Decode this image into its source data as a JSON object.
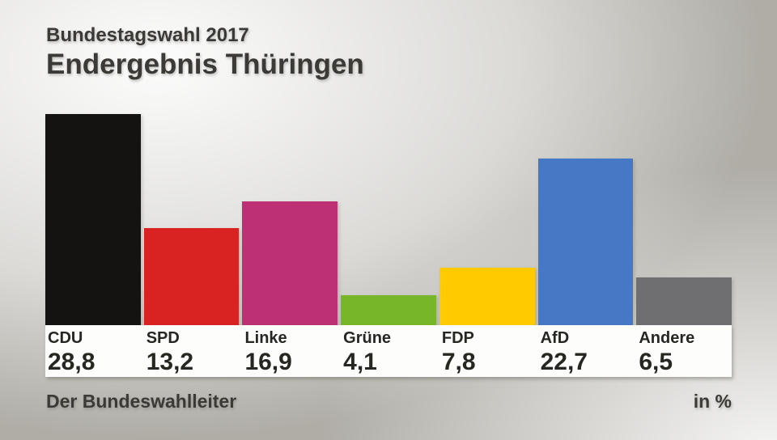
{
  "header": {
    "kicker": "Bundestagswahl 2017",
    "title": "Endergebnis Thüringen"
  },
  "footer": {
    "source": "Der Bundeswahlleiter",
    "unit_label": "in %"
  },
  "chart_data": {
    "type": "bar",
    "title": "Endergebnis Thüringen",
    "subtitle": "Bundestagswahl 2017",
    "categories": [
      "CDU",
      "SPD",
      "Linke",
      "Grüne",
      "FDP",
      "AfD",
      "Andere"
    ],
    "values": [
      28.8,
      13.2,
      16.9,
      4.1,
      7.8,
      22.7,
      6.5
    ],
    "display_values": [
      "28,8",
      "13,2",
      "16,9",
      "4,1",
      "7,8",
      "22,7",
      "6,5"
    ],
    "bar_colors": [
      "#151311",
      "#d92222",
      "#be3075",
      "#77b629",
      "#ffcb00",
      "#4579c5",
      "#6f6f71"
    ],
    "unit": "in %",
    "xlabel": "",
    "ylabel": "in %",
    "ylim": [
      0,
      28.8
    ],
    "grid": false,
    "legend": false
  },
  "colors": {
    "text_dark": "#3b3a36",
    "label_text": "#272722",
    "band_background": "#fdfdfc"
  }
}
